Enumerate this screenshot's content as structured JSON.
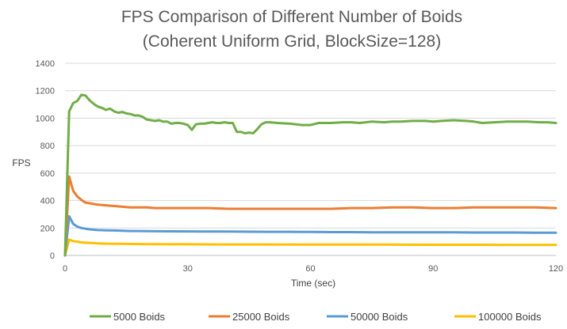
{
  "chart_data": {
    "type": "line",
    "title": [
      "FPS Comparison of Different Number of Boids",
      "(Coherent Uniform Grid, BlockSize=128)"
    ],
    "xlabel": "Time (sec)",
    "ylabel": "FPS",
    "xlim": [
      0,
      120
    ],
    "ylim": [
      0,
      1400
    ],
    "xticks": [
      0,
      30,
      60,
      90,
      120
    ],
    "yticks": [
      0,
      200,
      400,
      600,
      800,
      1000,
      1200,
      1400
    ],
    "grid": "horizontal",
    "legend": "bottom",
    "series": [
      {
        "name": "5000 Boids",
        "color": "#70AD47",
        "x": [
          0,
          1,
          2,
          3,
          4,
          5,
          6,
          7,
          8,
          9,
          10,
          11,
          12,
          13,
          14,
          15,
          16,
          17,
          18,
          19,
          20,
          21,
          22,
          23,
          24,
          25,
          26,
          27,
          28,
          29,
          30,
          31,
          32,
          33,
          34,
          35,
          36,
          37,
          38,
          39,
          40,
          41,
          42,
          43,
          44,
          45,
          46,
          47,
          48,
          49,
          50,
          52,
          55,
          58,
          60,
          62,
          65,
          68,
          70,
          72,
          75,
          78,
          80,
          82,
          85,
          88,
          90,
          92,
          95,
          98,
          100,
          102,
          105,
          108,
          110,
          113,
          116,
          118,
          120
        ],
        "values": [
          0,
          1050,
          1110,
          1125,
          1170,
          1165,
          1130,
          1105,
          1085,
          1075,
          1060,
          1070,
          1050,
          1040,
          1045,
          1035,
          1030,
          1020,
          1020,
          1010,
          990,
          985,
          980,
          985,
          975,
          975,
          960,
          965,
          965,
          960,
          950,
          915,
          955,
          960,
          960,
          965,
          970,
          965,
          965,
          970,
          965,
          965,
          900,
          900,
          890,
          895,
          890,
          920,
          955,
          970,
          970,
          965,
          960,
          950,
          950,
          965,
          965,
          970,
          970,
          965,
          975,
          970,
          975,
          975,
          980,
          980,
          975,
          980,
          985,
          980,
          975,
          965,
          970,
          975,
          975,
          975,
          970,
          970,
          965
        ]
      },
      {
        "name": "25000 Boids",
        "color": "#ED7D31",
        "x": [
          0,
          1,
          2,
          3,
          4,
          5,
          6,
          8,
          10,
          12,
          14,
          16,
          18,
          20,
          22,
          25,
          30,
          35,
          40,
          45,
          50,
          55,
          60,
          65,
          70,
          75,
          80,
          85,
          90,
          95,
          100,
          105,
          110,
          115,
          120
        ],
        "values": [
          0,
          575,
          470,
          430,
          405,
          385,
          380,
          370,
          365,
          360,
          355,
          350,
          350,
          350,
          345,
          345,
          345,
          345,
          340,
          340,
          340,
          340,
          340,
          340,
          345,
          345,
          350,
          350,
          345,
          345,
          350,
          350,
          350,
          350,
          345
        ]
      },
      {
        "name": "50000 Boids",
        "color": "#5B9BD5",
        "x": [
          0,
          1,
          2,
          3,
          4,
          5,
          6,
          8,
          10,
          12,
          14,
          16,
          18,
          20,
          25,
          30,
          35,
          40,
          45,
          50,
          55,
          60,
          65,
          70,
          75,
          80,
          85,
          90,
          95,
          100,
          105,
          110,
          115,
          120
        ],
        "values": [
          0,
          285,
          230,
          210,
          200,
          195,
          190,
          185,
          183,
          182,
          180,
          178,
          178,
          177,
          176,
          175,
          174,
          174,
          173,
          172,
          172,
          171,
          170,
          170,
          169,
          169,
          168,
          168,
          168,
          167,
          167,
          167,
          166,
          166
        ]
      },
      {
        "name": "100000 Boids",
        "color": "#FFC000",
        "x": [
          0,
          1,
          2,
          3,
          4,
          5,
          8,
          10,
          15,
          20,
          30,
          40,
          50,
          60,
          70,
          80,
          90,
          100,
          110,
          120
        ],
        "values": [
          0,
          115,
          105,
          100,
          95,
          93,
          88,
          86,
          84,
          82,
          81,
          80,
          80,
          79,
          79,
          79,
          78,
          78,
          77,
          77
        ]
      }
    ]
  }
}
